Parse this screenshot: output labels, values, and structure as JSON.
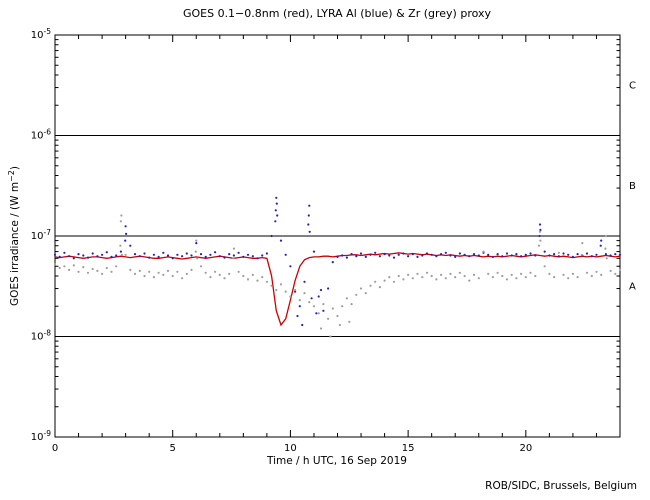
{
  "chart_data": {
    "type": "scatter",
    "title": "GOES 0.1−0.8nm (red), LYRA Al (blue) & Zr (grey) proxy",
    "xlabel": "Time / h UTC, 16 Sep 2019",
    "ylabel": "GOES irradiance / (W m-2)",
    "ylabel_parts": {
      "pre": "GOES irradiance / (W m",
      "sup": "−2",
      "post": ")"
    },
    "footer": "ROB/SIDC, Brussels, Belgium",
    "xlim": [
      0,
      24
    ],
    "x_minor_tick_hours": 1,
    "x_ticks_labeled": [
      0,
      5,
      10,
      15,
      20
    ],
    "ylim_log10": [
      -9,
      -5
    ],
    "y_ticks_exponents": [
      -5,
      -6,
      -7,
      -8,
      -9
    ],
    "grid": false,
    "flare_class_lines_log10": [
      -6,
      -7,
      -8
    ],
    "flare_class_labels": [
      {
        "label": "C",
        "center_log10": -5.5
      },
      {
        "label": "B",
        "center_log10": -6.5
      },
      {
        "label": "A",
        "center_log10": -7.5
      }
    ],
    "series": [
      {
        "id": "goes-xray-series",
        "name": "GOES 0.1-0.8nm (red)",
        "color": "#cc0000",
        "style": "line",
        "x_start": 0,
        "x_step": 0.2,
        "value_scale": 1e-08,
        "values": [
          6.2,
          6.1,
          6.2,
          6.3,
          6.2,
          6.1,
          6.0,
          6.1,
          6.2,
          6.2,
          6.1,
          6.0,
          6.1,
          6.2,
          6.3,
          6.2,
          6.1,
          6.2,
          6.3,
          6.2,
          6.1,
          6.0,
          6.0,
          6.1,
          6.2,
          6.1,
          6.0,
          5.9,
          6.0,
          6.1,
          6.2,
          6.1,
          6.0,
          6.1,
          6.2,
          6.3,
          6.2,
          6.1,
          6.0,
          6.1,
          6.2,
          6.1,
          6.0,
          6.0,
          6.1,
          6.0,
          4.0,
          1.8,
          1.3,
          1.5,
          2.3,
          3.6,
          5.0,
          5.8,
          6.1,
          6.2,
          6.2,
          6.3,
          6.3,
          6.2,
          6.3,
          6.4,
          6.4,
          6.5,
          6.5,
          6.4,
          6.5,
          6.6,
          6.5,
          6.6,
          6.7,
          6.6,
          6.7,
          6.8,
          6.7,
          6.6,
          6.7,
          6.6,
          6.5,
          6.6,
          6.5,
          6.4,
          6.5,
          6.4,
          6.5,
          6.4,
          6.3,
          6.4,
          6.3,
          6.4,
          6.3,
          6.2,
          6.3,
          6.2,
          6.3,
          6.2,
          6.3,
          6.4,
          6.3,
          6.2,
          6.3,
          6.4,
          6.5,
          6.4,
          6.3,
          6.4,
          6.3,
          6.2,
          6.3,
          6.2,
          6.1,
          6.2,
          6.3,
          6.2,
          6.3,
          6.2,
          6.3,
          6.4,
          6.3,
          6.2,
          6.3
        ],
        "extra_points": []
      },
      {
        "id": "lyra-al-series",
        "name": "LYRA Al proxy (blue)",
        "color": "#2222c2",
        "style": "dots",
        "x_start": 0,
        "x_step": 0.2,
        "value_scale": 1e-08,
        "values": [
          6.5,
          6.2,
          6.8,
          6.3,
          6.0,
          6.6,
          6.4,
          6.1,
          6.7,
          6.3,
          6.5,
          6.9,
          6.2,
          6.4,
          7.0,
          12.5,
          8.0,
          6.6,
          6.3,
          6.7,
          6.1,
          6.5,
          6.2,
          6.8,
          6.4,
          6.0,
          6.5,
          6.3,
          6.7,
          6.4,
          8.5,
          6.6,
          6.2,
          6.5,
          6.9,
          6.3,
          6.1,
          6.6,
          6.4,
          6.8,
          6.2,
          6.5,
          6.3,
          6.0,
          6.4,
          6.7,
          10.0,
          24.0,
          9.0,
          6.5,
          5.0,
          2.8,
          2.0,
          3.5,
          20.0,
          7.0,
          2.5,
          1.8,
          3.0,
          5.5,
          6.2,
          6.4,
          6.1,
          6.6,
          6.3,
          6.7,
          6.2,
          6.5,
          6.8,
          6.3,
          6.6,
          6.4,
          6.1,
          6.5,
          6.7,
          6.3,
          6.6,
          6.2,
          6.4,
          6.7,
          6.5,
          6.3,
          6.6,
          6.8,
          6.4,
          6.2,
          6.7,
          6.5,
          6.3,
          6.6,
          6.4,
          6.8,
          6.5,
          6.2,
          6.6,
          6.3,
          6.7,
          6.4,
          6.6,
          6.3,
          6.5,
          6.7,
          6.4,
          13.0,
          7.0,
          6.4,
          6.6,
          6.3,
          6.7,
          6.5,
          6.2,
          6.6,
          6.4,
          6.7,
          6.3,
          6.5,
          9.0,
          6.6,
          6.4,
          6.6,
          6.5
        ],
        "extra_points": [
          [
            2.98,
            9.0
          ],
          [
            3.02,
            10.5
          ],
          [
            9.36,
            14.0
          ],
          [
            9.38,
            18.0
          ],
          [
            9.42,
            21.0
          ],
          [
            9.44,
            16.0
          ],
          [
            10.76,
            13.0
          ],
          [
            10.78,
            16.0
          ],
          [
            10.82,
            11.0
          ],
          [
            10.3,
            1.6
          ],
          [
            10.5,
            1.3
          ],
          [
            10.9,
            2.4
          ],
          [
            11.1,
            1.7
          ],
          [
            11.3,
            2.9
          ],
          [
            20.58,
            10.0
          ],
          [
            20.62,
            11.5
          ],
          [
            23.18,
            8.0
          ]
        ]
      },
      {
        "id": "lyra-zr-series",
        "name": "LYRA Zr proxy (grey)",
        "color": "#9e9e9e",
        "style": "dots",
        "x_start": 0,
        "x_step": 0.2,
        "value_scale": 1e-08,
        "values": [
          5.2,
          4.8,
          5.0,
          4.6,
          5.1,
          4.4,
          4.9,
          4.3,
          4.7,
          4.5,
          4.2,
          4.8,
          4.4,
          5.0,
          14.0,
          6.5,
          4.6,
          4.2,
          4.5,
          4.0,
          4.4,
          3.9,
          4.3,
          4.1,
          4.5,
          4.0,
          4.4,
          3.8,
          4.2,
          4.6,
          9.0,
          5.0,
          4.3,
          3.9,
          4.4,
          4.1,
          3.8,
          4.2,
          7.5,
          4.4,
          4.0,
          3.7,
          4.1,
          3.6,
          3.9,
          3.5,
          3.2,
          2.9,
          3.3,
          2.8,
          2.5,
          2.9,
          2.3,
          2.7,
          2.2,
          2.0,
          1.7,
          2.1,
          1.5,
          1.9,
          1.6,
          2.0,
          2.4,
          2.1,
          2.6,
          3.0,
          2.7,
          3.2,
          3.5,
          3.1,
          3.6,
          3.9,
          3.5,
          4.0,
          3.7,
          4.1,
          3.8,
          4.2,
          3.9,
          4.3,
          4.0,
          3.7,
          4.1,
          3.8,
          4.2,
          3.9,
          4.3,
          4.0,
          3.6,
          4.1,
          3.8,
          7.0,
          4.2,
          3.9,
          4.3,
          4.0,
          3.7,
          4.1,
          3.8,
          4.2,
          3.9,
          4.3,
          4.0,
          11.0,
          5.0,
          4.2,
          3.9,
          6.8,
          4.1,
          3.8,
          4.2,
          3.9,
          8.5,
          4.3,
          4.0,
          4.4,
          4.1,
          10.0,
          4.5,
          4.2,
          4.6
        ],
        "extra_points": [
          [
            2.78,
            8.0
          ],
          [
            2.82,
            16.0
          ],
          [
            2.84,
            6.5
          ],
          [
            5.98,
            7.0
          ],
          [
            6.04,
            6.0
          ],
          [
            7.58,
            6.0
          ],
          [
            11.3,
            1.2
          ],
          [
            11.7,
            1.0
          ],
          [
            12.1,
            1.3
          ],
          [
            12.5,
            1.4
          ],
          [
            20.56,
            8.0
          ],
          [
            20.62,
            9.0
          ],
          [
            22.38,
            6.5
          ],
          [
            23.38,
            7.5
          ],
          [
            23.44,
            6.0
          ]
        ]
      }
    ]
  }
}
